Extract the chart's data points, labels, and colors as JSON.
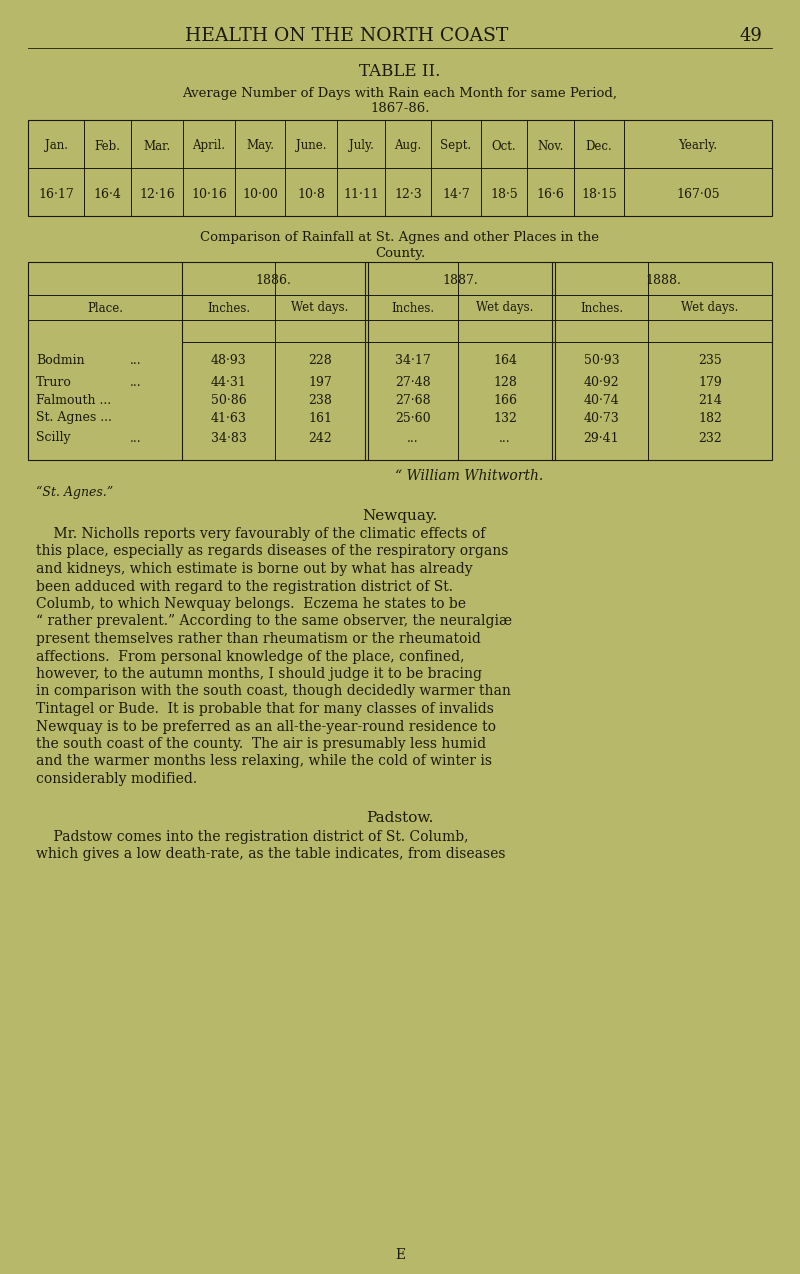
{
  "bg_color": "#b8b86a",
  "text_color": "#1a1a0a",
  "header_title": "HEALTH ON THE NORTH COAST",
  "page_number": "49",
  "table1_title": "TABLE II.",
  "table1_subtitle1": "Average Number of Days with Rain each Month for same Period,",
  "table1_subtitle2": "1867-86.",
  "table1_headers": [
    "Jan.",
    "Feb.",
    "Mar.",
    "April.",
    "May.",
    "June.",
    "July.",
    "Aug.",
    "Sept.",
    "Oct.",
    "Nov.",
    "Dec.",
    "Yearly."
  ],
  "table1_values": [
    "16·17",
    "16·4",
    "12·16",
    "10·16",
    "10·00",
    "10·8",
    "11·11",
    "12·3",
    "14·7",
    "18·5",
    "16·6",
    "18·15",
    "167·05"
  ],
  "table2_title1": "Comparison of Rainfall at St. Agnes and other Places in the",
  "table2_title2": "County.",
  "table2_data": [
    [
      "Bodmin",
      "...",
      "48·93",
      "228",
      "34·17",
      "164",
      "50·93",
      "235"
    ],
    [
      "Truro",
      "...",
      "44·31",
      "197",
      "27·48",
      "128",
      "40·92",
      "179"
    ],
    [
      "Falmouth ...",
      "",
      "50·86",
      "238",
      "27·68",
      "166",
      "40·74",
      "214"
    ],
    [
      "St. Agnes ...",
      "",
      "41·63",
      "161",
      "25·60",
      "132",
      "40·73",
      "182"
    ],
    [
      "Scilly",
      "...",
      "34·83",
      "242",
      "...",
      "...",
      "29·41",
      "232"
    ]
  ],
  "signature1": "“ William Whitworth.",
  "signature2": "“St. Agnes.”",
  "section_newquay_title": "Newquay.",
  "section_newquay_lines": [
    "    Mr. Nicholls reports very favourably of the climatic effects of",
    "this place, especially as regards diseases of the respiratory organs",
    "and kidneys, which estimate is borne out by what has already",
    "been adduced with regard to the registration district of St.",
    "Columb, to which Newquay belongs.  Eczema he states to be",
    "“ rather prevalent.” According to the same observer, the neuralgiæ",
    "present themselves rather than rheumatism or the rheumatoid",
    "affections.  From personal knowledge of the place, confined,",
    "however, to the autumn months, I should judge it to be bracing",
    "in comparison with the south coast, though decidedly warmer than",
    "Tintagel or Bude.  It is probable that for many classes of invalids",
    "Newquay is to be preferred as an all-the-year-round residence to",
    "the south coast of the county.  The air is presumably less humid",
    "and the warmer months less relaxing, while the cold of winter is",
    "considerably modified."
  ],
  "section_padstow_title": "Padstow.",
  "section_padstow_lines": [
    "    Padstow comes into the registration district of St. Columb,",
    "which gives a low death-rate, as the table indicates, from diseases"
  ],
  "footer_letter": "E"
}
